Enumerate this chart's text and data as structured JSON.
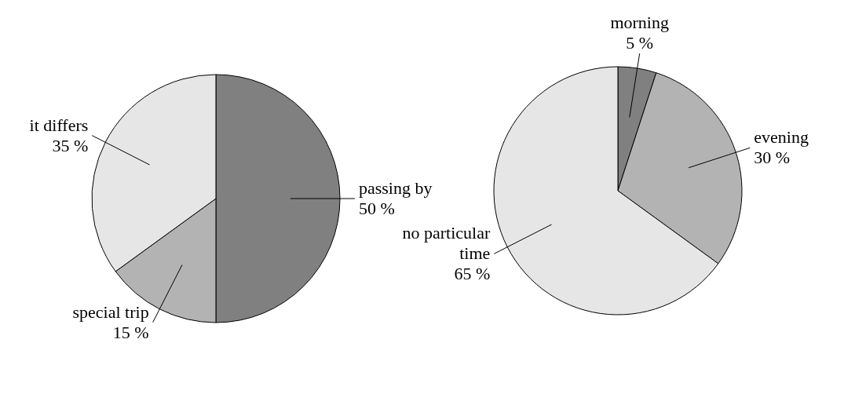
{
  "chart_data": [
    {
      "type": "pie",
      "categories": [
        "passing by",
        "special trip",
        "it differs"
      ],
      "values": [
        50,
        15,
        35
      ],
      "colors": [
        "#808080",
        "#b3b3b3",
        "#e6e6e6"
      ],
      "value_labels": [
        "50 %",
        "15 %",
        "35 %"
      ]
    },
    {
      "type": "pie",
      "categories": [
        "morning",
        "evening",
        "no particular time"
      ],
      "values": [
        5,
        30,
        65
      ],
      "colors": [
        "#808080",
        "#b3b3b3",
        "#e6e6e6"
      ],
      "value_labels": [
        "5 %",
        "30 %",
        "65 %"
      ]
    }
  ]
}
